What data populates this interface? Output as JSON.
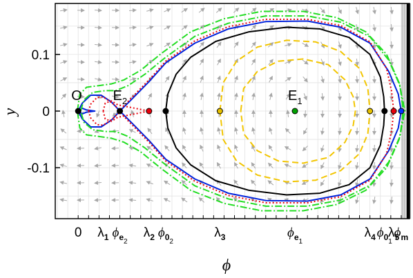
{
  "chart_data": {
    "type": "line",
    "xlabel": "ϕ",
    "ylabel": "y",
    "y_ticks": [
      {
        "value": 0.1,
        "label": "0.1"
      },
      {
        "value": 0,
        "label": "0"
      },
      {
        "value": -0.1,
        "label": "-0.1"
      }
    ],
    "x_tick_labels": [
      {
        "id": "zero",
        "x": 0.0,
        "main": "0",
        "sub": "",
        "color": "#000000"
      },
      {
        "id": "lambda1",
        "x": 0.06,
        "main": "λ",
        "sub": "1",
        "color": "#e8000b"
      },
      {
        "id": "phi-e2",
        "x": 0.1,
        "main": "ϕ",
        "sub": "e",
        "subsub": "2",
        "color": "#000000"
      },
      {
        "id": "lambda2",
        "x": 0.17,
        "main": "λ",
        "sub": "2",
        "color": "#e8000b"
      },
      {
        "id": "phi-02",
        "x": 0.21,
        "main": "ϕ",
        "sub": "0",
        "subsub": "2",
        "color": "#000000"
      },
      {
        "id": "lambda3",
        "x": 0.34,
        "main": "λ",
        "sub": "3",
        "color": "#e6c000"
      },
      {
        "id": "phi-e1",
        "x": 0.52,
        "main": "ϕ",
        "sub": "e",
        "subsub": "1",
        "color": "#000000"
      },
      {
        "id": "lambda4",
        "x": 0.7,
        "main": "λ",
        "sub": "4",
        "color": "#e6c000"
      },
      {
        "id": "phi-01",
        "x": 0.735,
        "main": "ϕ",
        "sub": "0",
        "subsub": "1",
        "color": "#000000"
      },
      {
        "id": "lambda5",
        "x": 0.757,
        "main": "λ",
        "sub": "5",
        "color": "#e8000b"
      },
      {
        "id": "phi-m",
        "x": 0.775,
        "main": "ϕ",
        "sub": "m",
        "color": "#0033ff"
      }
    ],
    "xlim": [
      -0.055,
      0.795
    ],
    "ylim": [
      -0.19,
      0.19
    ],
    "grid": true,
    "points": [
      {
        "id": "O",
        "label": "O",
        "x": 0.0,
        "y": 0,
        "fill": "#000000"
      },
      {
        "id": "E2",
        "label": "E",
        "sub": "2",
        "x": 0.1,
        "y": 0,
        "fill": "#000000"
      },
      {
        "id": "lambda2-pt",
        "label": "",
        "x": 0.17,
        "y": 0,
        "fill": "#e8000b"
      },
      {
        "id": "phi02-pt",
        "label": "",
        "x": 0.21,
        "y": 0,
        "fill": "#000000"
      },
      {
        "id": "lambda3-pt",
        "label": "",
        "x": 0.34,
        "y": 0,
        "fill": "#e6c000"
      },
      {
        "id": "E1",
        "label": "E",
        "sub": "1",
        "x": 0.52,
        "y": 0,
        "fill": "#00a000"
      },
      {
        "id": "lambda4-pt",
        "label": "",
        "x": 0.7,
        "y": 0,
        "fill": "#e6c000"
      },
      {
        "id": "phi01-pt",
        "label": "",
        "x": 0.735,
        "y": 0,
        "fill": "#000000"
      },
      {
        "id": "lambda5-pt",
        "label": "",
        "x": 0.757,
        "y": 0,
        "fill": "#e8000b"
      },
      {
        "id": "phim-pt",
        "label": "",
        "x": 0.775,
        "y": 0,
        "fill": "#0033ff"
      }
    ],
    "series": [
      {
        "id": "separatrix",
        "color": "#0022dd",
        "dash": "",
        "points": [
          [
            0,
            0
          ],
          [
            0.01,
            0.014
          ],
          [
            0.03,
            0.028
          ],
          [
            0.055,
            0.028
          ],
          [
            0.08,
            0.016
          ],
          [
            0.1,
            0
          ],
          [
            0.13,
            0.022
          ],
          [
            0.17,
            0.052
          ],
          [
            0.21,
            0.085
          ],
          [
            0.28,
            0.12
          ],
          [
            0.36,
            0.145
          ],
          [
            0.45,
            0.158
          ],
          [
            0.55,
            0.159
          ],
          [
            0.63,
            0.148
          ],
          [
            0.7,
            0.12
          ],
          [
            0.745,
            0.07
          ],
          [
            0.768,
            0.03
          ],
          [
            0.775,
            0
          ]
        ]
      },
      {
        "id": "homoclinic-inner",
        "color": "#0022dd",
        "dash": "",
        "points": [
          [
            0,
            0
          ],
          [
            0.01,
            0.005
          ],
          [
            0.02,
            0.002
          ],
          [
            0.04,
            0.0
          ]
        ]
      },
      {
        "id": "red-outer",
        "color": "#e8000b",
        "dash": "2,3",
        "points": [
          [
            0.025,
            0
          ],
          [
            0.03,
            0.012
          ],
          [
            0.045,
            0.024
          ],
          [
            0.06,
            0.025
          ],
          [
            0.08,
            0.015
          ],
          [
            0.1,
            0.002
          ],
          [
            0.13,
            0.025
          ],
          [
            0.17,
            0.055
          ],
          [
            0.21,
            0.088
          ],
          [
            0.28,
            0.124
          ],
          [
            0.36,
            0.149
          ],
          [
            0.45,
            0.162
          ],
          [
            0.55,
            0.162
          ],
          [
            0.63,
            0.151
          ],
          [
            0.7,
            0.122
          ],
          [
            0.74,
            0.075
          ],
          [
            0.752,
            0.035
          ],
          [
            0.757,
            0
          ]
        ]
      },
      {
        "id": "red-inner",
        "color": "#e8000b",
        "dash": "2,3",
        "points": [
          [
            0.06,
            0
          ],
          [
            0.065,
            0.014
          ],
          [
            0.08,
            0.018
          ],
          [
            0.095,
            0.011
          ],
          [
            0.17,
            0
          ]
        ]
      },
      {
        "id": "black-orbit",
        "color": "#000000",
        "dash": "",
        "points": [
          [
            0.21,
            0
          ],
          [
            0.215,
            0.03
          ],
          [
            0.235,
            0.065
          ],
          [
            0.27,
            0.095
          ],
          [
            0.33,
            0.123
          ],
          [
            0.41,
            0.14
          ],
          [
            0.5,
            0.148
          ],
          [
            0.58,
            0.145
          ],
          [
            0.65,
            0.13
          ],
          [
            0.7,
            0.1
          ],
          [
            0.725,
            0.06
          ],
          [
            0.733,
            0.025
          ],
          [
            0.735,
            0
          ]
        ]
      },
      {
        "id": "yellow-outer",
        "color": "#f2c500",
        "dash": "9,5",
        "points": [
          [
            0.34,
            0
          ],
          [
            0.348,
            0.05
          ],
          [
            0.38,
            0.088
          ],
          [
            0.43,
            0.113
          ],
          [
            0.5,
            0.125
          ],
          [
            0.57,
            0.122
          ],
          [
            0.63,
            0.105
          ],
          [
            0.675,
            0.075
          ],
          [
            0.695,
            0.04
          ],
          [
            0.7,
            0
          ]
        ]
      },
      {
        "id": "yellow-inner",
        "color": "#f2c500",
        "dash": "9,5",
        "points": [
          [
            0.39,
            0
          ],
          [
            0.397,
            0.04
          ],
          [
            0.43,
            0.07
          ],
          [
            0.48,
            0.088
          ],
          [
            0.54,
            0.092
          ],
          [
            0.6,
            0.082
          ],
          [
            0.64,
            0.055
          ],
          [
            0.66,
            0.025
          ],
          [
            0.665,
            0
          ]
        ]
      },
      {
        "id": "green-outer",
        "color": "#22dd22",
        "dash": "10,3,2,3",
        "points": [
          [
            -0.002,
            0
          ],
          [
            0.004,
            0.03
          ],
          [
            0.02,
            0.042
          ],
          [
            0.05,
            0.045
          ],
          [
            0.08,
            0.048
          ],
          [
            0.11,
            0.055
          ],
          [
            0.15,
            0.072
          ],
          [
            0.2,
            0.102
          ],
          [
            0.27,
            0.14
          ],
          [
            0.35,
            0.163
          ],
          [
            0.44,
            0.176
          ],
          [
            0.54,
            0.176
          ],
          [
            0.62,
            0.165
          ],
          [
            0.69,
            0.14
          ],
          [
            0.74,
            0.1
          ],
          [
            0.77,
            0.05
          ],
          [
            0.784,
            0
          ]
        ]
      },
      {
        "id": "green-inner",
        "color": "#22dd22",
        "dash": "10,3,2,3",
        "points": [
          [
            0.006,
            0
          ],
          [
            0.014,
            0.02
          ],
          [
            0.035,
            0.033
          ],
          [
            0.065,
            0.036
          ],
          [
            0.09,
            0.036
          ],
          [
            0.12,
            0.045
          ],
          [
            0.16,
            0.065
          ],
          [
            0.21,
            0.095
          ],
          [
            0.28,
            0.132
          ],
          [
            0.36,
            0.155
          ],
          [
            0.45,
            0.168
          ],
          [
            0.55,
            0.168
          ],
          [
            0.63,
            0.157
          ],
          [
            0.7,
            0.131
          ],
          [
            0.745,
            0.09
          ],
          [
            0.772,
            0.045
          ],
          [
            0.78,
            0
          ]
        ]
      }
    ]
  }
}
